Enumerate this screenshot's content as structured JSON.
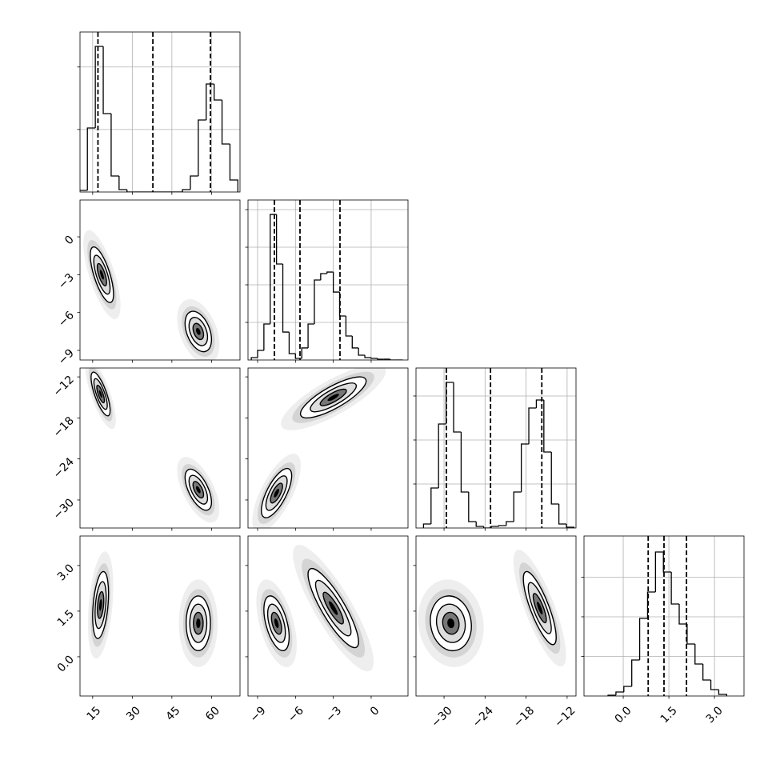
{
  "chart_data": [
    {
      "type": "hist",
      "color": "#000000",
      "grid": true,
      "xlim": [
        10.2,
        70.8
      ],
      "xticks": [
        15,
        30,
        45,
        60
      ],
      "xtick_labels": false,
      "ylim": [
        0,
        2560
      ],
      "yticks": [
        1000,
        2000
      ],
      "ytick_labels": false,
      "bins": [
        10,
        13,
        16,
        19,
        22,
        25,
        28,
        31,
        34,
        37,
        40,
        43,
        46,
        49,
        52,
        55,
        58,
        61,
        64,
        67,
        70
      ],
      "counts": [
        26,
        1024,
        2330,
        1254,
        256,
        38,
        0,
        0,
        0,
        0,
        0,
        0,
        0,
        38,
        256,
        1152,
        1728,
        1472,
        768,
        192
      ],
      "quantiles": [
        17,
        37.8,
        59.6
      ]
    },
    {
      "type": "contour",
      "color": "#000000",
      "grid": false,
      "xlim": [
        10.2,
        70.8
      ],
      "xticks": [
        15,
        30,
        45,
        60
      ],
      "xtick_labels": false,
      "ylim": [
        -9.76,
        2.92
      ],
      "yticks": [
        {
          "value": -9,
          "label": "−9"
        },
        {
          "value": -6,
          "label": "−6"
        },
        {
          "value": -3,
          "label": "−3"
        },
        0
      ],
      "ytick_labels": true,
      "clusters": [
        {
          "x": 18.5,
          "y": -3.0,
          "sx": 2.2,
          "sy": 1.1,
          "rho": -0.7
        },
        {
          "x": 55,
          "y": -7.5,
          "sx": 2.5,
          "sy": 0.8,
          "rho": -0.4
        }
      ]
    },
    {
      "type": "hist",
      "color": "#000000",
      "grid": true,
      "xlim": [
        -9.76,
        2.92
      ],
      "xticks": [
        -9,
        -6,
        -3,
        0
      ],
      "xtick_labels": false,
      "ylim": [
        0,
        2128
      ],
      "yticks": [
        500,
        1000,
        1500,
        2000
      ],
      "ytick_labels": false,
      "bins": [
        -9.5,
        -9,
        -8.5,
        -8,
        -7.5,
        -7,
        -6.5,
        -6,
        -5.5,
        -5,
        -4.5,
        -4,
        -3.5,
        -3,
        -2.5,
        -2,
        -1.5,
        -1,
        -0.5,
        0,
        0.5,
        1,
        1.5,
        2,
        2.5
      ],
      "counts": [
        32,
        128,
        479,
        1936,
        1277,
        372,
        85,
        21,
        160,
        479,
        1064,
        1149,
        1170,
        904,
        585,
        319,
        160,
        64,
        32,
        21,
        11,
        11,
        0,
        0
      ],
      "quantiles": [
        -7.67,
        -5.64,
        -2.47
      ]
    },
    {
      "type": "contour",
      "color": "#000000",
      "grid": false,
      "xlim": [
        10.2,
        70.8
      ],
      "xticks": [
        15,
        30,
        45,
        60
      ],
      "xtick_labels": false,
      "ylim": [
        -34.1,
        -10.7
      ],
      "yticks": [
        {
          "value": -30,
          "label": "−30"
        },
        {
          "value": -24,
          "label": "−24"
        },
        {
          "value": -18,
          "label": "−18"
        },
        {
          "value": -12,
          "label": "−12"
        }
      ],
      "ytick_labels": true,
      "clusters": [
        {
          "x": 18,
          "y": -14.5,
          "sx": 1.8,
          "sy": 1.6,
          "rho": -0.75
        },
        {
          "x": 55,
          "y": -28.5,
          "sx": 2.5,
          "sy": 1.5,
          "rho": -0.6
        }
      ]
    },
    {
      "type": "contour",
      "color": "#000000",
      "grid": false,
      "xlim": [
        -9.76,
        2.92
      ],
      "xticks": [
        -9,
        -6,
        -3,
        0
      ],
      "xtick_labels": false,
      "ylim": [
        -34.1,
        -10.7
      ],
      "yticks": [
        -30,
        -24,
        -18,
        -12
      ],
      "ytick_labels": false,
      "clusters": [
        {
          "x": -7.5,
          "y": -29,
          "sx": 0.6,
          "sy": 1.8,
          "rho": 0.7
        },
        {
          "x": -3,
          "y": -15,
          "sx": 1.3,
          "sy": 1.5,
          "rho": 0.8
        }
      ]
    },
    {
      "type": "hist",
      "color": "#000000",
      "grid": true,
      "xlim": [
        -34.1,
        -10.7
      ],
      "xticks": [
        -30,
        -24,
        -18,
        -12
      ],
      "xtick_labels": false,
      "ylim": [
        0,
        3636
      ],
      "yticks": [
        1000,
        2000,
        3000
      ],
      "ytick_labels": false,
      "bins": [
        -33,
        -31.9,
        -30.8,
        -29.7,
        -28.6,
        -27.5,
        -26.4,
        -25.3,
        -24.2,
        -23.1,
        -22,
        -20.9,
        -19.8,
        -18.7,
        -17.6,
        -16.5,
        -15.4,
        -14.3,
        -13.2,
        -12.1,
        -11
      ],
      "counts": [
        91,
        909,
        2364,
        3309,
        2182,
        818,
        145,
        36,
        0,
        36,
        55,
        145,
        818,
        1909,
        2727,
        2909,
        1727,
        545,
        91,
        18
      ],
      "quantiles": [
        -29.66,
        -23.2,
        -15.7
      ]
    },
    {
      "type": "contour",
      "color": "#000000",
      "grid": false,
      "xlim": [
        10.2,
        70.8
      ],
      "xticks": [
        15,
        30,
        45,
        60
      ],
      "xtick_labels": true,
      "ylim": [
        -1.29,
        3.97
      ],
      "yticks": [
        {
          "value": 0,
          "label": "0.0"
        },
        {
          "value": 1.5,
          "label": "1.5"
        },
        {
          "value": 3,
          "label": "3.0"
        }
      ],
      "ytick_labels": true,
      "clusters": [
        {
          "x": 18,
          "y": 1.7,
          "sx": 1.5,
          "sy": 0.55,
          "rho": 0.35
        },
        {
          "x": 55,
          "y": 1.1,
          "sx": 2.3,
          "sy": 0.45,
          "rho": 0
        }
      ]
    },
    {
      "type": "contour",
      "color": "#000000",
      "grid": false,
      "xlim": [
        -9.76,
        2.92
      ],
      "xticks": [
        {
          "value": -9,
          "label": "−9"
        },
        {
          "value": -6,
          "label": "−6"
        },
        {
          "value": -3,
          "label": "−3"
        },
        0
      ],
      "xtick_labels": true,
      "ylim": [
        -1.29,
        3.97
      ],
      "yticks": [
        0,
        1.5,
        3
      ],
      "ytick_labels": false,
      "clusters": [
        {
          "x": -7.5,
          "y": 1.1,
          "sx": 0.5,
          "sy": 0.45,
          "rho": -0.5
        },
        {
          "x": -3,
          "y": 1.6,
          "sx": 1.0,
          "sy": 0.65,
          "rho": -0.85
        }
      ]
    },
    {
      "type": "contour",
      "color": "#000000",
      "grid": false,
      "xlim": [
        -34.1,
        -10.7
      ],
      "xticks": [
        {
          "value": -30,
          "label": "−30"
        },
        {
          "value": -24,
          "label": "−24"
        },
        {
          "value": -18,
          "label": "−18"
        },
        {
          "value": -12,
          "label": "−12"
        }
      ],
      "xtick_labels": true,
      "ylim": [
        -1.29,
        3.97
      ],
      "yticks": [
        0,
        1.5,
        3
      ],
      "ytick_labels": false,
      "clusters": [
        {
          "x": -29,
          "y": 1.1,
          "sx": 1.5,
          "sy": 0.45,
          "rho": -0.1
        },
        {
          "x": -16,
          "y": 1.6,
          "sx": 1.2,
          "sy": 0.6,
          "rho": -0.8
        }
      ]
    },
    {
      "type": "hist",
      "color": "#000000",
      "grid": true,
      "xlim": [
        -1.29,
        3.97
      ],
      "xticks": [
        {
          "value": 0,
          "label": "0.0"
        },
        {
          "value": 1.5,
          "label": "1.5"
        },
        {
          "value": 3,
          "label": "3.0"
        }
      ],
      "xtick_labels": true,
      "ylim": [
        0,
        4040
      ],
      "yticks": [
        1000,
        2000,
        3000
      ],
      "ytick_labels": false,
      "bins": [
        -0.5,
        -0.24,
        0.02,
        0.28,
        0.54,
        0.8,
        1.06,
        1.32,
        1.58,
        1.84,
        2.1,
        2.36,
        2.62,
        2.88,
        3.14,
        3.4
      ],
      "counts": [
        20,
        101,
        242,
        909,
        1959,
        2626,
        3636,
        3131,
        2323,
        1818,
        1313,
        808,
        404,
        162,
        40
      ],
      "quantiles": [
        0.82,
        1.34,
        2.08
      ]
    }
  ]
}
